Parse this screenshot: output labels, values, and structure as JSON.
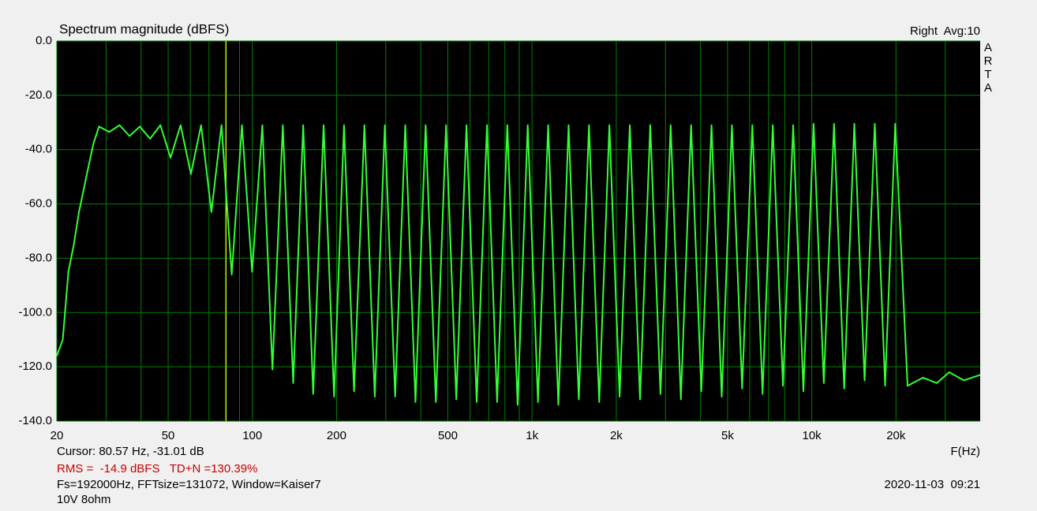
{
  "chart_data": {
    "type": "line",
    "title": "Spectrum magnitude (dBFS)",
    "channel_label": "Right  Avg:10",
    "brand_letters": [
      "A",
      "R",
      "T",
      "A"
    ],
    "x_label": "F(Hz)",
    "cursor": {
      "label": "Cursor: 80.57 Hz, -31.01 dB",
      "x": 80.57,
      "color": "#ffff00"
    },
    "rms_text": "RMS =  -14.9 dBFS   TD+N =130.39%",
    "settings_text": "Fs=192000Hz, FFTsize=131072, Window=Kaiser7",
    "timestamp": "2020-11-03  09:21",
    "note": "10V 8ohm",
    "x_log": true,
    "grid": true,
    "color": "#33ff33",
    "xlim": [
      20,
      40000
    ],
    "ylim": [
      -140,
      0
    ],
    "xticks": [
      20,
      50,
      100,
      200,
      500,
      {
        "value": 1000,
        "label": "1k"
      },
      {
        "value": 2000,
        "label": "2k"
      },
      {
        "value": 5000,
        "label": "5k"
      },
      {
        "value": 10000,
        "label": "10k"
      },
      {
        "value": 20000,
        "label": "20k"
      }
    ],
    "x_minor_ticks": [
      30,
      40,
      60,
      70,
      80,
      90,
      300,
      400,
      600,
      700,
      800,
      900,
      3000,
      4000,
      6000,
      7000,
      8000,
      9000,
      30000
    ],
    "yticks": [
      {
        "value": 0,
        "label": "0.0"
      },
      {
        "value": -20,
        "label": "-20.0"
      },
      {
        "value": -40,
        "label": "-40.0"
      },
      {
        "value": -60,
        "label": "-60.0"
      },
      {
        "value": -80,
        "label": "-80.0"
      },
      {
        "value": -100,
        "label": "-100.0"
      },
      {
        "value": -120,
        "label": "-120.0"
      },
      {
        "value": -140,
        "label": "-140.0"
      }
    ],
    "x": [
      20,
      21,
      22,
      23,
      24,
      25.5,
      27,
      28.3,
      30.8,
      33.5,
      36.4,
      39.6,
      43.1,
      46.9,
      51,
      55.4,
      60.3,
      65.6,
      71.4,
      77.6,
      84.4,
      91.8,
      99.8,
      108.6,
      118,
      128.5,
      140,
      152,
      165,
      179.8,
      196,
      212.7,
      231,
      251.6,
      274,
      297.7,
      324,
      352.2,
      383,
      416.5,
      453,
      492.7,
      536,
      583,
      634,
      690,
      750,
      816,
      888,
      965,
      1050,
      1142,
      1242,
      1351,
      1469,
      1598,
      1738,
      1890,
      2056,
      2236,
      2432,
      2646,
      2878,
      3130,
      3404,
      3703,
      4029,
      4381,
      4764,
      5182,
      5637,
      6131,
      6669,
      7253,
      7889,
      8579,
      9332,
      10150,
      11040,
      12010,
      13060,
      14200,
      15450,
      16800,
      18290,
      19880,
      22000,
      25000,
      28000,
      31000,
      35000,
      40000
    ],
    "values": [
      -116,
      -110,
      -85,
      -75,
      -63,
      -50,
      -38,
      -31.5,
      -33.5,
      -31,
      -35,
      -31.5,
      -36,
      -31,
      -43,
      -31,
      -49,
      -31,
      -63,
      -31,
      -86,
      -31,
      -85,
      -31,
      -121,
      -31,
      -126,
      -31,
      -130,
      -31,
      -131,
      -31,
      -129,
      -31,
      -131,
      -31,
      -131,
      -31,
      -133,
      -31,
      -133,
      -31,
      -132,
      -31,
      -133,
      -31,
      -133,
      -31,
      -134,
      -31,
      -133,
      -31,
      -134,
      -31,
      -132,
      -31,
      -133,
      -31,
      -131,
      -31,
      -132,
      -31,
      -130,
      -31,
      -132,
      -31,
      -129,
      -31,
      -131,
      -31,
      -128,
      -31,
      -130,
      -31,
      -127,
      -31,
      -129,
      -30.5,
      -126,
      -30.5,
      -128,
      -30.5,
      -125,
      -30.5,
      -127,
      -30.5,
      -127,
      -124,
      -126,
      -122,
      -125,
      -123
    ]
  }
}
